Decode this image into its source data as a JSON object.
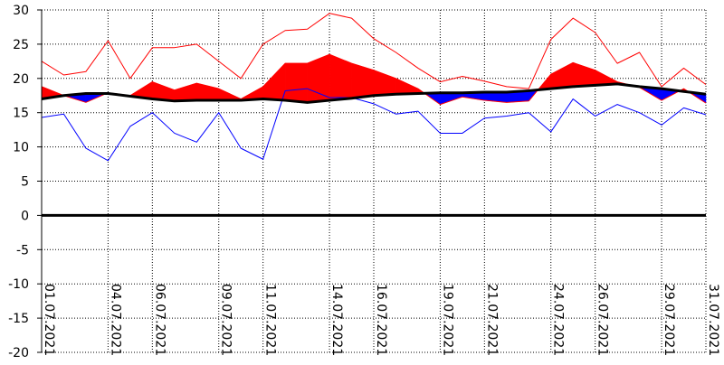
{
  "chart_data": {
    "type": "line",
    "title": "",
    "xlabel": "",
    "ylabel": "",
    "ylim": [
      -20,
      30
    ],
    "y_ticks": [
      -20,
      -15,
      -10,
      -5,
      0,
      5,
      10,
      15,
      20,
      25,
      30
    ],
    "x_tick_days": [
      1,
      4,
      6,
      9,
      11,
      14,
      16,
      19,
      21,
      24,
      26,
      29,
      31
    ],
    "x_tick_labels": [
      "01.07.2021",
      "04.07.2021",
      "06.07.2021",
      "09.07.2021",
      "11.07.2021",
      "14.07.2021",
      "16.07.2021",
      "19.07.2021",
      "21.07.2021",
      "24.07.2021",
      "26.07.2021",
      "29.07.2021",
      "31.07.2021"
    ],
    "grid": true,
    "x": [
      "01.07.2021",
      "02.07.2021",
      "03.07.2021",
      "04.07.2021",
      "05.07.2021",
      "06.07.2021",
      "07.07.2021",
      "08.07.2021",
      "09.07.2021",
      "10.07.2021",
      "11.07.2021",
      "12.07.2021",
      "13.07.2021",
      "14.07.2021",
      "15.07.2021",
      "16.07.2021",
      "17.07.2021",
      "18.07.2021",
      "19.07.2021",
      "20.07.2021",
      "21.07.2021",
      "22.07.2021",
      "23.07.2021",
      "24.07.2021",
      "25.07.2021",
      "26.07.2021",
      "27.07.2021",
      "28.07.2021",
      "29.07.2021",
      "30.07.2021",
      "31.07.2021"
    ],
    "series": [
      {
        "role": "daily-max",
        "color": "#ff0000",
        "values": [
          22.5,
          20.5,
          21.0,
          25.5,
          20.0,
          24.5,
          24.5,
          25.0,
          22.5,
          20.0,
          25.0,
          27.0,
          27.2,
          29.5,
          28.8,
          25.8,
          23.8,
          21.5,
          19.5,
          20.3,
          19.6,
          18.8,
          18.5,
          25.7,
          28.8,
          26.7,
          22.2,
          23.8,
          18.8,
          21.5,
          19.1
        ]
      },
      {
        "role": "daily-mean",
        "color": "#ff0000",
        "values": [
          18.8,
          17.5,
          16.5,
          17.9,
          17.5,
          19.5,
          18.3,
          19.3,
          18.5,
          17.0,
          18.8,
          22.2,
          22.2,
          23.5,
          22.2,
          21.2,
          20.0,
          18.5,
          16.2,
          17.3,
          16.8,
          16.5,
          16.7,
          20.6,
          22.3,
          21.2,
          19.5,
          18.7,
          16.8,
          18.5,
          16.4
        ]
      },
      {
        "role": "normal-mean",
        "color": "#000000",
        "values": [
          17.0,
          17.5,
          17.8,
          17.8,
          17.4,
          17.0,
          16.7,
          16.8,
          16.8,
          16.8,
          17.0,
          16.8,
          16.5,
          16.8,
          17.1,
          17.5,
          17.7,
          17.8,
          17.9,
          17.9,
          18.0,
          18.0,
          18.2,
          18.5,
          18.8,
          19.0,
          19.2,
          18.8,
          18.5,
          18.1,
          17.7
        ]
      },
      {
        "role": "daily-min",
        "color": "#0000ff",
        "values": [
          14.3,
          14.8,
          9.8,
          8.0,
          13.0,
          15.0,
          12.0,
          10.7,
          15.0,
          9.8,
          8.2,
          18.2,
          18.5,
          17.2,
          17.2,
          16.3,
          14.8,
          15.2,
          12.0,
          12.0,
          14.2,
          14.5,
          15.0,
          12.2,
          17.0,
          14.5,
          16.2,
          15.0,
          13.2,
          15.7,
          14.7
        ]
      }
    ]
  }
}
